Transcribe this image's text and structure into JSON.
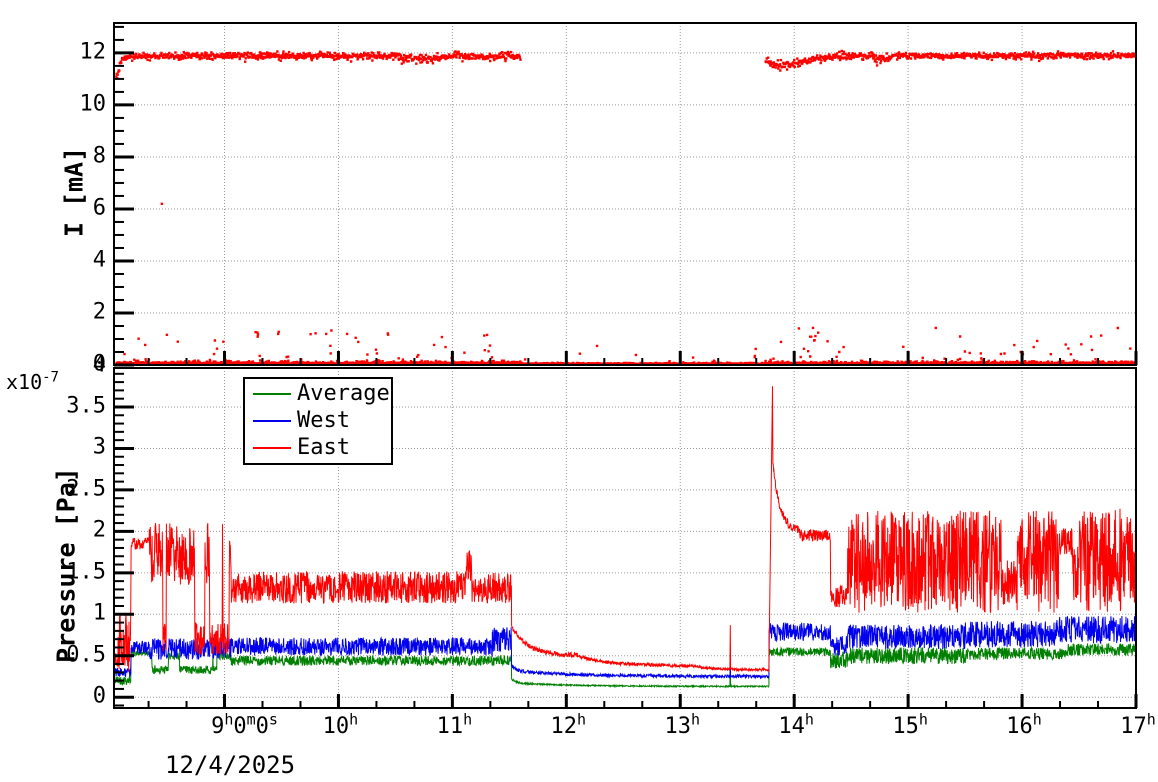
{
  "figure": {
    "background": "#ffffff",
    "frame_color": "#000000",
    "grid_color": "#9a9a9a",
    "top_panel": {
      "ylabel": "I [mA]",
      "yticks": [
        "0",
        "2",
        "4",
        "6",
        "8",
        "10",
        "12"
      ],
      "minor_step": 0.5
    },
    "bottom_panel": {
      "ylabel": "Pressure [Pa]",
      "scale_prefix": "x10",
      "scale_exp": "-7",
      "yticks": [
        "0",
        "0.5",
        "1",
        "1.5",
        "2",
        "2.5",
        "3",
        "3.5",
        "4"
      ],
      "minor_step": 0.1
    },
    "x_axis": {
      "lim": [
        8.03,
        17.0
      ],
      "major_tick_hours": [
        9,
        10,
        11,
        12,
        13,
        14,
        15,
        16,
        17
      ],
      "minor_tick_minutes": 20,
      "date_label": "12/4/2025",
      "tick_labels": [
        {
          "hour": 9,
          "parts": [
            [
              "9",
              "h"
            ],
            [
              "0",
              "m"
            ],
            [
              "0",
              "s"
            ]
          ]
        },
        {
          "hour": 10,
          "parts": [
            [
              "10",
              "h"
            ]
          ]
        },
        {
          "hour": 11,
          "parts": [
            [
              "11",
              "h"
            ]
          ]
        },
        {
          "hour": 12,
          "parts": [
            [
              "12",
              "h"
            ]
          ]
        },
        {
          "hour": 13,
          "parts": [
            [
              "13",
              "h"
            ]
          ]
        },
        {
          "hour": 14,
          "parts": [
            [
              "14",
              "h"
            ]
          ]
        },
        {
          "hour": 15,
          "parts": [
            [
              "15",
              "h"
            ]
          ]
        },
        {
          "hour": 16,
          "parts": [
            [
              "16",
              "h"
            ]
          ]
        },
        {
          "hour": 17,
          "parts": [
            [
              "17",
              "h"
            ]
          ]
        }
      ]
    }
  },
  "legend": {
    "entries": [
      {
        "label": "Average",
        "color": "#008000"
      },
      {
        "label": "West",
        "color": "#0000ee"
      },
      {
        "label": "East",
        "color": "#ff0000"
      }
    ]
  },
  "chart_data": [
    {
      "id": "beam-current",
      "type": "scatter",
      "ylabel": "I [mA]",
      "ylim": [
        0,
        13.15
      ],
      "xlim": [
        8.03,
        17.0
      ],
      "marker_color": "#ff0000",
      "marker_size": 2.4,
      "beam_segments": [
        {
          "t0": 8.05,
          "t1": 8.09,
          "y0": 11.0,
          "y1": 11.6,
          "sigma": 0.16
        },
        {
          "t0": 8.09,
          "t1": 8.2,
          "y0": 11.72,
          "y1": 11.88,
          "sigma": 0.09
        },
        {
          "t0": 8.2,
          "t1": 10.55,
          "y0": 11.88,
          "y1": 11.88,
          "sigma": 0.07
        },
        {
          "t0": 10.55,
          "t1": 10.9,
          "y0": 11.78,
          "y1": 11.8,
          "sigma": 0.09
        },
        {
          "t0": 10.9,
          "t1": 11.6,
          "y0": 11.86,
          "y1": 11.86,
          "sigma": 0.07
        },
        {
          "t0": 13.75,
          "t1": 13.82,
          "y0": 11.68,
          "y1": 11.55,
          "sigma": 0.1
        },
        {
          "t0": 13.82,
          "t1": 14.0,
          "y0": 11.5,
          "y1": 11.55,
          "sigma": 0.09
        },
        {
          "t0": 14.0,
          "t1": 14.3,
          "y0": 11.6,
          "y1": 11.86,
          "sigma": 0.08
        },
        {
          "t0": 14.3,
          "t1": 14.7,
          "y0": 11.88,
          "y1": 11.88,
          "sigma": 0.07
        },
        {
          "t0": 14.7,
          "t1": 14.85,
          "y0": 11.78,
          "y1": 11.8,
          "sigma": 0.08
        },
        {
          "t0": 14.85,
          "t1": 17.0,
          "y0": 11.88,
          "y1": 11.9,
          "sigma": 0.06
        }
      ],
      "beam_dt": 0.0045,
      "zero_band": {
        "dt": 0.0026,
        "base": 0.02,
        "spread": 0.05,
        "gap": [
          11.6,
          13.78
        ],
        "gap_spread": 0.026
      },
      "outliers": {
        "count": 135,
        "ymin": 0.12,
        "ymax": 1.45,
        "gap_count": 14,
        "gap_ymax": 0.9
      },
      "notable_points": [
        {
          "t": 8.45,
          "y": 6.2
        }
      ]
    },
    {
      "id": "pressure",
      "type": "line",
      "ylabel": "Pressure [Pa] (x1e-7)",
      "ylim": [
        -0.13,
        3.97
      ],
      "xlim": [
        8.03,
        17.0
      ],
      "dt": 0.003,
      "series": [
        {
          "name": "Average",
          "color": "#008000",
          "segments": [
            {
              "t0": 8.03,
              "t1": 8.18,
              "kind": "band",
              "lo": 0.15,
              "hi": 0.26
            },
            {
              "t0": 8.18,
              "t1": 8.34,
              "kind": "band",
              "lo": 0.5,
              "hi": 0.56
            },
            {
              "t0": 8.34,
              "t1": 9.06,
              "kind": "bistable",
              "hi_band": [
                0.45,
                0.55
              ],
              "lo_band": [
                0.28,
                0.38
              ],
              "p_switch": 0.03
            },
            {
              "t0": 9.06,
              "t1": 11.52,
              "kind": "band",
              "lo": 0.38,
              "hi": 0.5
            },
            {
              "t0": 11.52,
              "t1": 11.72,
              "kind": "decay",
              "from": 0.22,
              "to": 0.16,
              "noise": 0.012
            },
            {
              "t0": 11.72,
              "t1": 13.78,
              "kind": "decay",
              "from": 0.16,
              "to": 0.13,
              "noise": 0.008
            },
            {
              "t0": 13.78,
              "t1": 14.32,
              "kind": "band",
              "lo": 0.5,
              "hi": 0.6
            },
            {
              "t0": 14.32,
              "t1": 14.47,
              "kind": "band",
              "lo": 0.34,
              "hi": 0.55
            },
            {
              "t0": 14.47,
              "t1": 15.6,
              "kind": "band",
              "lo": 0.4,
              "hi": 0.6
            },
            {
              "t0": 15.6,
              "t1": 16.4,
              "kind": "band",
              "lo": 0.45,
              "hi": 0.6
            },
            {
              "t0": 16.4,
              "t1": 17.0,
              "kind": "band",
              "lo": 0.5,
              "hi": 0.65
            }
          ],
          "spikes": [
            {
              "t": 13.44,
              "peak": 0.5
            }
          ]
        },
        {
          "name": "West",
          "color": "#0000ee",
          "segments": [
            {
              "t0": 8.03,
              "t1": 8.18,
              "kind": "band",
              "lo": 0.24,
              "hi": 0.36
            },
            {
              "t0": 8.18,
              "t1": 8.34,
              "kind": "band",
              "lo": 0.52,
              "hi": 0.68
            },
            {
              "t0": 8.34,
              "t1": 9.06,
              "kind": "band",
              "lo": 0.45,
              "hi": 0.72
            },
            {
              "t0": 9.06,
              "t1": 11.35,
              "kind": "band",
              "lo": 0.5,
              "hi": 0.72
            },
            {
              "t0": 11.35,
              "t1": 11.52,
              "kind": "band",
              "lo": 0.55,
              "hi": 0.85
            },
            {
              "t0": 11.52,
              "t1": 11.72,
              "kind": "decay",
              "from": 0.38,
              "to": 0.3,
              "noise": 0.022
            },
            {
              "t0": 11.72,
              "t1": 13.78,
              "kind": "decay",
              "from": 0.3,
              "to": 0.25,
              "noise": 0.018
            },
            {
              "t0": 13.78,
              "t1": 14.32,
              "kind": "band",
              "lo": 0.68,
              "hi": 0.9
            },
            {
              "t0": 14.32,
              "t1": 14.47,
              "kind": "band",
              "lo": 0.5,
              "hi": 0.75
            },
            {
              "t0": 14.47,
              "t1": 15.5,
              "kind": "band",
              "lo": 0.58,
              "hi": 0.88
            },
            {
              "t0": 15.5,
              "t1": 16.3,
              "kind": "band",
              "lo": 0.6,
              "hi": 0.92
            },
            {
              "t0": 16.3,
              "t1": 17.0,
              "kind": "band",
              "lo": 0.65,
              "hi": 0.98
            }
          ],
          "spikes": [
            {
              "t": 13.44,
              "peak": 0.36
            }
          ]
        },
        {
          "name": "East",
          "color": "#ff0000",
          "segments": [
            {
              "t0": 8.03,
              "t1": 8.06,
              "kind": "band",
              "lo": 0.35,
              "hi": 0.55
            },
            {
              "t0": 8.06,
              "t1": 8.18,
              "kind": "band",
              "lo": 0.3,
              "hi": 1.0
            },
            {
              "t0": 8.18,
              "t1": 8.34,
              "kind": "band",
              "lo": 1.78,
              "hi": 1.93
            },
            {
              "t0": 8.34,
              "t1": 9.06,
              "kind": "bistable",
              "hi_band": [
                1.35,
                2.1
              ],
              "lo_band": [
                0.5,
                0.9
              ],
              "p_switch": 0.03
            },
            {
              "t0": 9.06,
              "t1": 11.12,
              "kind": "band",
              "lo": 1.13,
              "hi": 1.52
            },
            {
              "t0": 11.12,
              "t1": 11.17,
              "kind": "band",
              "lo": 1.4,
              "hi": 1.78
            },
            {
              "t0": 11.17,
              "t1": 11.52,
              "kind": "band",
              "lo": 1.13,
              "hi": 1.5
            },
            {
              "t0": 11.52,
              "t1": 12.1,
              "kind": "decay",
              "from": 0.85,
              "to": 0.5,
              "noise": 0.028
            },
            {
              "t0": 12.1,
              "t1": 13.1,
              "kind": "decay",
              "from": 0.5,
              "to": 0.38,
              "noise": 0.02
            },
            {
              "t0": 13.1,
              "t1": 13.78,
              "kind": "decay",
              "from": 0.38,
              "to": 0.33,
              "noise": 0.015
            },
            {
              "t0": 13.81,
              "t1": 14.05,
              "kind": "decay",
              "from": 2.9,
              "to": 2.0,
              "noise": 0.05
            },
            {
              "t0": 14.05,
              "t1": 14.32,
              "kind": "band",
              "lo": 1.88,
              "hi": 2.02
            },
            {
              "t0": 14.32,
              "t1": 14.47,
              "kind": "band",
              "lo": 1.08,
              "hi": 1.38
            },
            {
              "t0": 14.47,
              "t1": 15.82,
              "kind": "band",
              "lo": 1.02,
              "hi": 2.25
            },
            {
              "t0": 15.82,
              "t1": 15.95,
              "kind": "band",
              "lo": 1.1,
              "hi": 1.65
            },
            {
              "t0": 15.95,
              "t1": 16.32,
              "kind": "band",
              "lo": 1.02,
              "hi": 2.25
            },
            {
              "t0": 16.32,
              "t1": 16.44,
              "kind": "band",
              "lo": 1.7,
              "hi": 2.05
            },
            {
              "t0": 16.44,
              "t1": 17.0,
              "kind": "band",
              "lo": 1.02,
              "hi": 2.28
            }
          ],
          "spikes": [
            {
              "t": 13.44,
              "peak": 0.87
            },
            {
              "t": 13.795,
              "peak": 3.75
            }
          ]
        }
      ],
      "legend_position": "top-left-inside"
    }
  ]
}
